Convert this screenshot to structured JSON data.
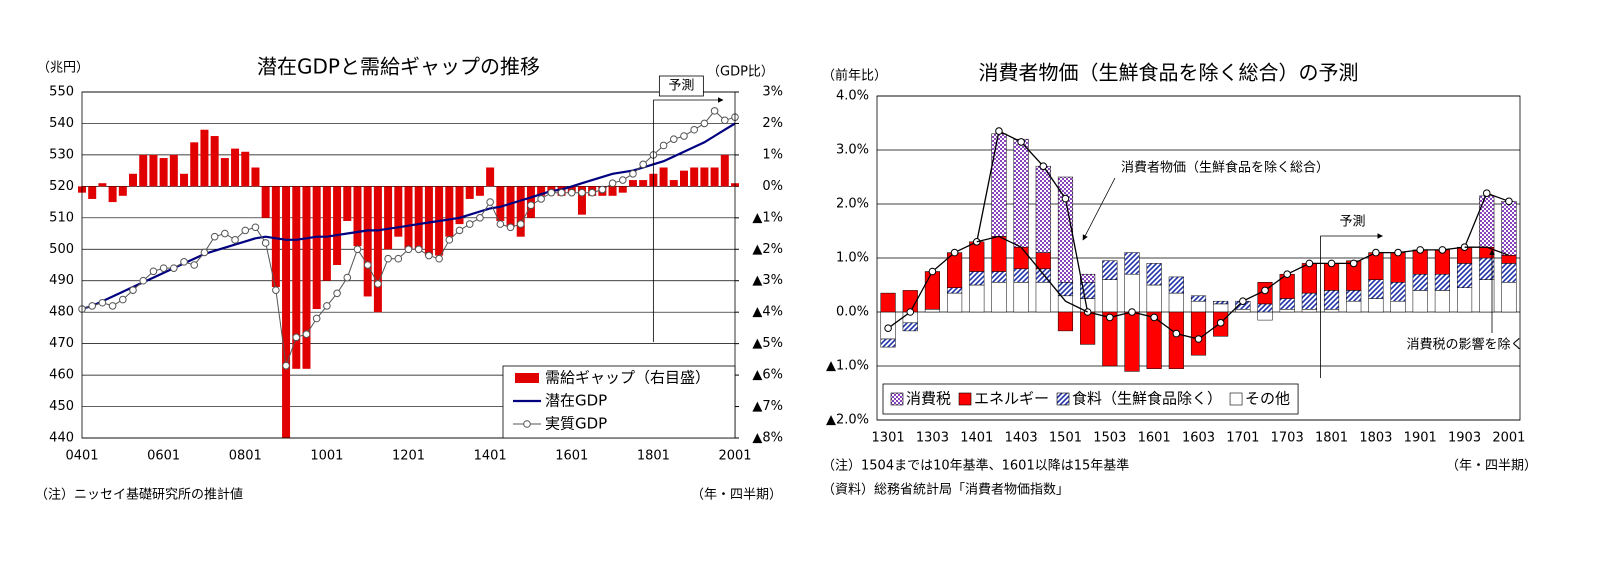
{
  "chart_data": [
    {
      "type": "combo",
      "title": "潜在GDPと需給ギャップの推移",
      "ylabel": "（兆円）",
      "y2label": "（GDP比）",
      "note": "（注）ニッセイ基礎研究所の推計値",
      "xlabel": "（年・四半期）",
      "categories": [
        "0401",
        null,
        null,
        null,
        null,
        null,
        null,
        null,
        "0601",
        null,
        null,
        null,
        null,
        null,
        null,
        null,
        "0801",
        null,
        null,
        null,
        null,
        null,
        null,
        null,
        "1001",
        null,
        null,
        null,
        null,
        null,
        null,
        null,
        "1201",
        null,
        null,
        null,
        null,
        null,
        null,
        null,
        "1401",
        null,
        null,
        null,
        null,
        null,
        null,
        null,
        "1601",
        null,
        null,
        null,
        null,
        null,
        null,
        null,
        "1801",
        null,
        null,
        null,
        null,
        null,
        null,
        null,
        "2001"
      ],
      "series": [
        {
          "name": "需給ギャップ（右目盛）",
          "type": "bar",
          "axis": "y2",
          "color": "#e00000",
          "values": [
            -0.2,
            -0.4,
            0.1,
            -0.5,
            -0.3,
            0.4,
            1.0,
            1.0,
            0.9,
            1.0,
            0.4,
            1.4,
            1.8,
            1.6,
            0.9,
            1.2,
            1.1,
            0.6,
            -1.0,
            -3.2,
            -8.0,
            -5.8,
            -5.8,
            -3.9,
            -3.0,
            -2.5,
            -1.1,
            -1.9,
            -3.5,
            -4.0,
            -2.0,
            -1.6,
            -2.0,
            -2.0,
            -2.2,
            -2.2,
            -1.6,
            -1.2,
            -0.4,
            -0.3,
            0.6,
            -1.1,
            -1.3,
            -1.6,
            -1.0,
            -0.3,
            -0.2,
            -0.3,
            -0.2,
            -0.9,
            -0.3,
            -0.3,
            -0.3,
            -0.2,
            0.2,
            0.2,
            0.4,
            0.6,
            0.2,
            0.5,
            0.6,
            0.6,
            0.6,
            1.0,
            0.1
          ]
        },
        {
          "name": "潜在GDP",
          "type": "line",
          "color": "#000080",
          "values": [
            481,
            482,
            483.5,
            485,
            486.5,
            488,
            489.5,
            491,
            492.5,
            494,
            495.5,
            497,
            498.5,
            499.5,
            500.5,
            501.5,
            502.5,
            503.5,
            504,
            503.5,
            503,
            503,
            503.5,
            504,
            504,
            504.5,
            505,
            505.5,
            506,
            506,
            506.5,
            507,
            507.5,
            508,
            508.5,
            509,
            509.5,
            510,
            511,
            512,
            513,
            513.5,
            514.5,
            515.5,
            516.5,
            517.5,
            518.5,
            519,
            520,
            521,
            522,
            523,
            524,
            524.5,
            525,
            526,
            527,
            528,
            529.5,
            531,
            532.5,
            534,
            536,
            538,
            540
          ]
        },
        {
          "name": "実質GDP",
          "type": "line",
          "color": "#555555",
          "marker": "circle",
          "values": [
            481,
            482,
            483,
            482,
            484,
            487,
            490,
            493,
            494,
            494,
            496,
            495,
            499,
            504,
            505,
            503,
            506,
            507,
            502,
            487,
            463,
            472,
            473,
            478,
            482,
            486,
            491,
            500,
            495,
            489,
            497,
            497,
            500,
            500,
            498,
            497,
            503,
            506,
            508,
            510,
            515,
            508,
            507,
            508,
            514,
            516,
            518,
            518,
            518,
            518,
            518,
            519,
            521,
            522,
            524,
            527,
            530,
            533,
            535,
            536,
            538,
            540,
            544,
            541,
            542
          ]
        }
      ],
      "ylim": [
        440,
        550
      ],
      "yticks": [
        440,
        450,
        460,
        470,
        480,
        490,
        500,
        510,
        520,
        530,
        540,
        550
      ],
      "y2lim": [
        -8,
        3
      ],
      "y2ticks": [
        {
          "value": 3,
          "label": "3%"
        },
        {
          "value": 2,
          "label": "2%"
        },
        {
          "value": 1,
          "label": "1%"
        },
        {
          "value": 0,
          "label": "0%"
        },
        {
          "value": -1,
          "label": "▲1%"
        },
        {
          "value": -2,
          "label": "▲2%"
        },
        {
          "value": -3,
          "label": "▲3%"
        },
        {
          "value": -4,
          "label": "▲4%"
        },
        {
          "value": -5,
          "label": "▲5%"
        },
        {
          "value": -6,
          "label": "▲6%"
        },
        {
          "value": -7,
          "label": "▲7%"
        },
        {
          "value": -8,
          "label": "▲8%"
        }
      ],
      "grid": true,
      "legend": "lower right",
      "forecast": {
        "label": "予測",
        "from": "1801"
      }
    },
    {
      "type": "stacked",
      "title": "消費者物価（生鮮食品を除く総合）の予測",
      "ylabel": "（前年比）",
      "xlabel": "（年・四半期）",
      "notes": [
        "（注）1504までは10年基準、1601以降は15年基準",
        "（資料）総務省統計局「消費者物価指数」"
      ],
      "categories": [
        "1301",
        null,
        "1303",
        null,
        "1401",
        null,
        "1403",
        null,
        "1501",
        null,
        "1503",
        null,
        "1601",
        null,
        "1603",
        null,
        "1701",
        null,
        "1703",
        null,
        "1801",
        null,
        "1803",
        null,
        "1901",
        null,
        "1903",
        null,
        "2001"
      ],
      "series": [
        {
          "name": "消費税",
          "color": "#8844bb",
          "pattern": "grid",
          "values": [
            0,
            0,
            0,
            0,
            0,
            1.9,
            2.0,
            1.6,
            1.95,
            0.15,
            0,
            0,
            0,
            0,
            0,
            0,
            0,
            0,
            0,
            0,
            0,
            0,
            0,
            0,
            0,
            0,
            0,
            0.95,
            1.0
          ]
        },
        {
          "name": "エネルギー",
          "color": "#ff0000",
          "values": [
            0.35,
            0.4,
            0.7,
            0.65,
            0.55,
            0.65,
            0.4,
            0.3,
            -0.35,
            -0.6,
            -1.0,
            -1.1,
            -1.05,
            -1.05,
            -0.8,
            -0.45,
            0.0,
            0.4,
            0.45,
            0.55,
            0.5,
            0.55,
            0.5,
            0.55,
            0.45,
            0.45,
            0.3,
            0.2,
            0.15
          ]
        },
        {
          "name": "食料（生鮮食品除く）",
          "color": "#2233aa",
          "pattern": "hatch",
          "values": [
            -0.15,
            -0.15,
            0.0,
            0.1,
            0.25,
            0.2,
            0.25,
            0.25,
            0.25,
            0.3,
            0.35,
            0.4,
            0.4,
            0.3,
            0.1,
            0.05,
            0.15,
            0.15,
            0.2,
            0.3,
            0.35,
            0.2,
            0.35,
            0.35,
            0.3,
            0.3,
            0.45,
            0.4,
            0.35
          ]
        },
        {
          "name": "その他",
          "color": "#ffffff",
          "values": [
            -0.5,
            -0.2,
            0.05,
            0.35,
            0.5,
            0.55,
            0.55,
            0.55,
            0.3,
            0.25,
            0.6,
            0.7,
            0.5,
            0.35,
            0.2,
            0.15,
            0.05,
            -0.15,
            0.05,
            0.05,
            0.05,
            0.2,
            0.25,
            0.2,
            0.4,
            0.4,
            0.45,
            0.6,
            0.55
          ]
        }
      ],
      "lines": [
        {
          "name": "消費者物価（生鮮食品を除く総合）",
          "color": "#000000",
          "marker": "circle",
          "values": [
            -0.3,
            0.0,
            0.75,
            1.1,
            1.3,
            3.35,
            3.15,
            2.7,
            2.1,
            0.0,
            -0.1,
            0.0,
            -0.1,
            -0.4,
            -0.5,
            -0.2,
            0.2,
            0.4,
            0.7,
            0.9,
            0.9,
            0.9,
            1.1,
            1.1,
            1.15,
            1.15,
            1.2,
            2.2,
            2.05
          ]
        },
        {
          "name": "消費税の影響を除く",
          "color": "#000000",
          "values": [
            null,
            null,
            null,
            null,
            1.3,
            1.4,
            1.2,
            0.7,
            0.2,
            0.0,
            null,
            null,
            null,
            null,
            null,
            null,
            null,
            null,
            null,
            null,
            null,
            null,
            null,
            null,
            null,
            null,
            1.2,
            1.2,
            1.05
          ]
        }
      ],
      "ylim": [
        -2,
        4
      ],
      "yticks": [
        {
          "value": 4,
          "label": "4.0%"
        },
        {
          "value": 3,
          "label": "3.0%"
        },
        {
          "value": 2,
          "label": "2.0%"
        },
        {
          "value": 1,
          "label": "1.0%"
        },
        {
          "value": 0,
          "label": "0.0%"
        },
        {
          "value": -1,
          "label": "▲1.0%"
        },
        {
          "value": -2,
          "label": "▲2.0%"
        }
      ],
      "grid": true,
      "legend": "lower left",
      "forecast": {
        "label": "予測",
        "from": "1801"
      }
    }
  ]
}
